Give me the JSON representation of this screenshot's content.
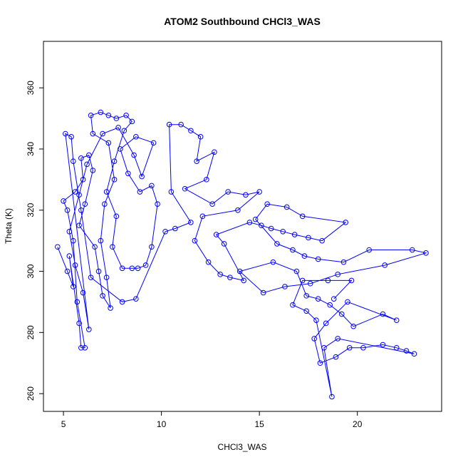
{
  "chart_data": {
    "type": "line",
    "markers": true,
    "title": "ATOM2 Southbound CHCl3_WAS",
    "x_label": "CHCl3_WAS",
    "y_label": "Theta (K)",
    "color": "#0000ff",
    "x": [
      4.7,
      5.2,
      5.5,
      5.3,
      5.8,
      5.9,
      6.1,
      5.7,
      5.5,
      5.2,
      5.0,
      5.6,
      6.0,
      5.9,
      6.3,
      6.5,
      6.1,
      5.8,
      6.6,
      6.8,
      7.0,
      7.4,
      7.2,
      6.9,
      7.1,
      7.6,
      7.3,
      6.5,
      6.4,
      6.9,
      7.3,
      7.7,
      8.2,
      8.5,
      8.1,
      7.6,
      7.2,
      7.7,
      7.5,
      8.0,
      8.5,
      8.8,
      9.2,
      9.5,
      9.8,
      9.5,
      8.9,
      8.3,
      7.9,
      8.7,
      9.6,
      9.0,
      8.6,
      7.8,
      7.0,
      6.2,
      5.8,
      5.3,
      5.6,
      6.0,
      6.3,
      5.1,
      5.4,
      5.5,
      5.9,
      6.4,
      8.0,
      8.7,
      10.2,
      10.7,
      11.5,
      10.5,
      10.4,
      11.0,
      11.5,
      12.0,
      11.8,
      12.7,
      12.3,
      11.2,
      12.6,
      13.4,
      14.3,
      15.0,
      13.9,
      12.1,
      11.7,
      12.4,
      13.0,
      13.5,
      14.2,
      13.2,
      12.8,
      14.5,
      15.1,
      15.6,
      16.2,
      16.8,
      17.5,
      18.2,
      19.4,
      17.2,
      16.4,
      15.4,
      14.8,
      15.9,
      16.7,
      17.3,
      18.0,
      19.3,
      20.6,
      22.8,
      23.5,
      21.4,
      19.0,
      17.6,
      16.3,
      15.2,
      14.0,
      15.7,
      16.9,
      17.4,
      18.0,
      18.6,
      19.2,
      19.8,
      21.3,
      22.0,
      19.5,
      18.4,
      17.8,
      18.1,
      18.9,
      19.6,
      20.3,
      21.3,
      22.0,
      22.5,
      22.9,
      19.0,
      18.3,
      18.7,
      17.9,
      17.4,
      16.7,
      17.2,
      18.5,
      19.7,
      18.8
    ],
    "values": [
      308,
      300,
      295,
      305,
      283,
      275,
      275,
      290,
      310,
      320,
      323,
      326,
      330,
      337,
      338,
      333,
      322,
      315,
      308,
      300,
      292,
      288,
      298,
      310,
      322,
      330,
      342,
      345,
      351,
      352,
      351,
      350,
      351,
      349,
      346,
      336,
      326,
      318,
      308,
      301,
      301,
      301,
      302,
      308,
      322,
      328,
      326,
      332,
      340,
      344,
      342,
      331,
      338,
      347,
      345,
      335,
      325,
      313,
      302,
      293,
      281,
      345,
      344,
      336,
      320,
      298,
      290,
      291,
      313,
      314,
      316,
      326,
      348,
      348,
      346,
      344,
      336,
      339,
      330,
      327,
      322,
      326,
      325,
      326,
      320,
      318,
      310,
      303,
      299,
      298,
      297,
      309,
      312,
      316,
      315,
      314,
      313,
      312,
      311,
      310,
      316,
      318,
      321,
      322,
      317,
      309,
      307,
      305,
      304,
      303,
      307,
      307,
      306,
      302,
      299,
      296,
      295,
      293,
      300,
      303,
      300,
      292,
      291,
      289,
      286,
      282,
      286,
      284,
      290,
      283,
      278,
      270,
      272,
      275,
      275,
      276,
      275,
      274,
      273,
      278,
      275,
      259,
      284,
      287,
      289,
      297,
      297,
      297,
      291
    ],
    "xlim": [
      3.98,
      24.3
    ],
    "ylim": [
      254.2,
      375.2
    ],
    "xticks": [
      5,
      10,
      15,
      20
    ],
    "yticks": [
      260,
      280,
      300,
      320,
      340,
      360
    ]
  }
}
